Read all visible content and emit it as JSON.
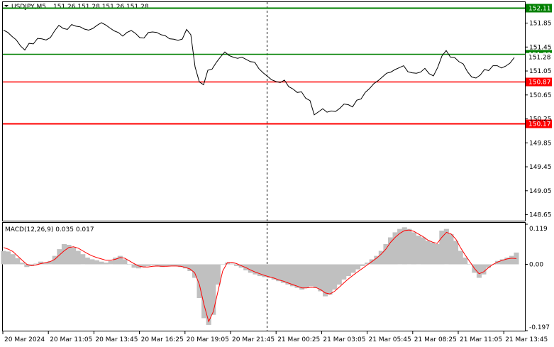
{
  "header": {
    "symbol_text": "USDJPY,M5",
    "ohlc_text": "151.26 151.28 151.26 151.28"
  },
  "indicator": {
    "label": "MACD(12,26,9) 0.035 0.017"
  },
  "colors": {
    "price_line": "#000000",
    "green_level": "#008000",
    "red_level": "#ff0000",
    "macd_hist": "#c0c0c0",
    "signal_line": "#ff0000",
    "grid_dash": "#000000"
  },
  "chart_data": [
    {
      "type": "line",
      "title": "",
      "ylim": [
        148.55,
        152.2
      ],
      "y_ticks": [
        "151.85",
        "151.45",
        "151.05",
        "150.65",
        "150.25",
        "149.85",
        "149.45",
        "149.05",
        "148.65"
      ],
      "x_ticks": [
        "20 Mar 2024",
        "20 Mar 11:05",
        "20 Mar 13:45",
        "20 Mar 16:25",
        "20 Mar 19:05",
        "20 Mar 21:45",
        "21 Mar 00:25",
        "21 Mar 03:05",
        "21 Mar 05:45",
        "21 Mar 08:25",
        "21 Mar 11:05",
        "21 Mar 13:45"
      ],
      "current_price_label": "151.28",
      "levels": [
        {
          "value": 152.11,
          "label": "152.11",
          "color": "#008000"
        },
        {
          "value": 151.33,
          "label": "151.33",
          "color": "#008000"
        },
        {
          "value": 150.87,
          "label": "150.87",
          "color": "#ff0000"
        },
        {
          "value": 150.17,
          "label": "150.17",
          "color": "#ff0000"
        }
      ],
      "series": [
        {
          "values": [
            151.75,
            151.7,
            151.62,
            151.55,
            151.48,
            151.4,
            151.5,
            151.52,
            151.6,
            151.58,
            151.55,
            151.62,
            151.72,
            151.8,
            151.78,
            151.75,
            151.82,
            151.78,
            151.8,
            151.75,
            151.72,
            151.78,
            151.82,
            151.85,
            151.8,
            151.78,
            151.72,
            151.68,
            151.65,
            151.7,
            151.72,
            151.66,
            151.62,
            151.6,
            151.68,
            151.72,
            151.7,
            151.65,
            151.62,
            151.6,
            151.58,
            151.55,
            151.6,
            151.75,
            151.65,
            151.1,
            150.88,
            150.82,
            151.05,
            151.1,
            151.2,
            151.28,
            151.35,
            151.32,
            151.28,
            151.25,
            151.3,
            151.25,
            151.2,
            151.18,
            151.1,
            151.02,
            150.95,
            150.92,
            150.88,
            150.85,
            150.88,
            150.8,
            150.75,
            150.68,
            150.72,
            150.6,
            150.55,
            150.3,
            150.38,
            150.42,
            150.35,
            150.4,
            150.38,
            150.42,
            150.48,
            150.5,
            150.45,
            150.55,
            150.6,
            150.7,
            150.75,
            150.82,
            150.9,
            150.95,
            151.0,
            151.05,
            151.08,
            151.1,
            151.12,
            151.05,
            151.02,
            151.0,
            151.05,
            151.1,
            151.0,
            150.95,
            151.12,
            151.3,
            151.38,
            151.3,
            151.28,
            151.2,
            151.15,
            151.05,
            150.95,
            150.92,
            151.0,
            151.08,
            151.05,
            151.12,
            151.15,
            151.1,
            151.12,
            151.2,
            151.28
          ]
        }
      ]
    },
    {
      "type": "bar",
      "title": "MACD(12,26,9) 0.035 0.017",
      "ylim": [
        -0.197,
        0.119
      ],
      "y_ticks": [
        "0.119",
        "0.00",
        "-0.197"
      ],
      "series": [
        {
          "name": "MACD",
          "values": [
            0.04,
            0.038,
            0.03,
            0.018,
            0.005,
            -0.008,
            -0.005,
            0.002,
            0.008,
            0.005,
            0.01,
            0.025,
            0.045,
            0.06,
            0.058,
            0.05,
            0.04,
            0.03,
            0.02,
            0.015,
            0.012,
            0.008,
            0.005,
            0.01,
            0.02,
            0.025,
            0.015,
            0.0,
            -0.01,
            -0.012,
            -0.008,
            -0.005,
            -0.003,
            -0.005,
            -0.008,
            -0.006,
            -0.004,
            -0.005,
            -0.008,
            -0.012,
            -0.02,
            -0.04,
            -0.1,
            -0.16,
            -0.18,
            -0.15,
            -0.06,
            0.0,
            0.005,
            0.002,
            -0.005,
            -0.01,
            -0.018,
            -0.025,
            -0.03,
            -0.035,
            -0.038,
            -0.04,
            -0.045,
            -0.05,
            -0.055,
            -0.06,
            -0.065,
            -0.07,
            -0.075,
            -0.07,
            -0.065,
            -0.07,
            -0.08,
            -0.095,
            -0.09,
            -0.075,
            -0.06,
            -0.045,
            -0.035,
            -0.025,
            -0.015,
            -0.005,
            0.005,
            0.015,
            0.025,
            0.04,
            0.06,
            0.08,
            0.095,
            0.105,
            0.11,
            0.105,
            0.095,
            0.085,
            0.08,
            0.07,
            0.065,
            0.06,
            0.1,
            0.105,
            0.09,
            0.07,
            0.04,
            0.02,
            0.0,
            -0.025,
            -0.04,
            -0.03,
            -0.01,
            0.0,
            0.01,
            0.015,
            0.02,
            0.025,
            0.035
          ]
        },
        {
          "name": "Signal",
          "values": [
            0.05,
            0.045,
            0.038,
            0.025,
            0.012,
            0.0,
            -0.004,
            -0.002,
            0.002,
            0.005,
            0.008,
            0.015,
            0.028,
            0.04,
            0.05,
            0.052,
            0.048,
            0.04,
            0.032,
            0.025,
            0.02,
            0.016,
            0.012,
            0.012,
            0.015,
            0.02,
            0.018,
            0.01,
            0.002,
            -0.005,
            -0.008,
            -0.008,
            -0.006,
            -0.005,
            -0.006,
            -0.006,
            -0.005,
            -0.005,
            -0.006,
            -0.009,
            -0.014,
            -0.025,
            -0.06,
            -0.12,
            -0.17,
            -0.14,
            -0.08,
            -0.02,
            0.005,
            0.006,
            0.002,
            -0.004,
            -0.01,
            -0.017,
            -0.023,
            -0.028,
            -0.033,
            -0.037,
            -0.041,
            -0.046,
            -0.05,
            -0.055,
            -0.06,
            -0.065,
            -0.07,
            -0.07,
            -0.068,
            -0.069,
            -0.075,
            -0.085,
            -0.088,
            -0.08,
            -0.068,
            -0.055,
            -0.043,
            -0.032,
            -0.022,
            -0.012,
            -0.002,
            0.008,
            0.018,
            0.03,
            0.045,
            0.065,
            0.08,
            0.092,
            0.1,
            0.102,
            0.098,
            0.09,
            0.082,
            0.072,
            0.066,
            0.062,
            0.08,
            0.095,
            0.09,
            0.075,
            0.05,
            0.028,
            0.008,
            -0.012,
            -0.028,
            -0.022,
            -0.01,
            0.0,
            0.007,
            0.012,
            0.016,
            0.018,
            0.017
          ]
        }
      ]
    }
  ]
}
